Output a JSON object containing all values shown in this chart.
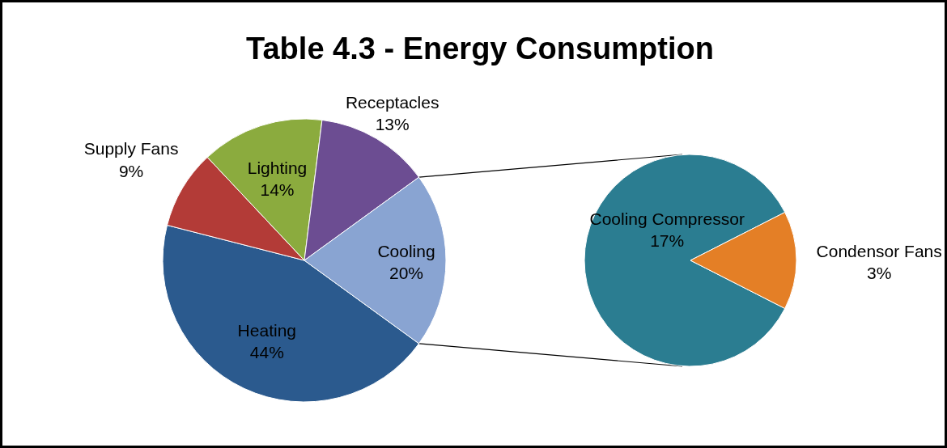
{
  "chart_data": [
    {
      "type": "pie",
      "title": "Table 4.3 - Energy Consumption",
      "categories": [
        "Heating",
        "Supply Fans",
        "Lighting",
        "Receptacles",
        "Cooling"
      ],
      "values": [
        44,
        9,
        14,
        13,
        20
      ],
      "value_labels": [
        "44%",
        "9%",
        "14%",
        "13%",
        "20%"
      ],
      "colors": [
        "#2b5a8e",
        "#b33b37",
        "#8bab3e",
        "#6c4d92",
        "#89a4d2"
      ],
      "legend": false
    },
    {
      "type": "pie",
      "categories": [
        "Cooling Compressor",
        "Condensor Fans"
      ],
      "values": [
        17,
        3
      ],
      "value_labels": [
        "17%",
        "3%"
      ],
      "colors": [
        "#2b7d91",
        "#e47f26"
      ],
      "legend": false
    }
  ]
}
